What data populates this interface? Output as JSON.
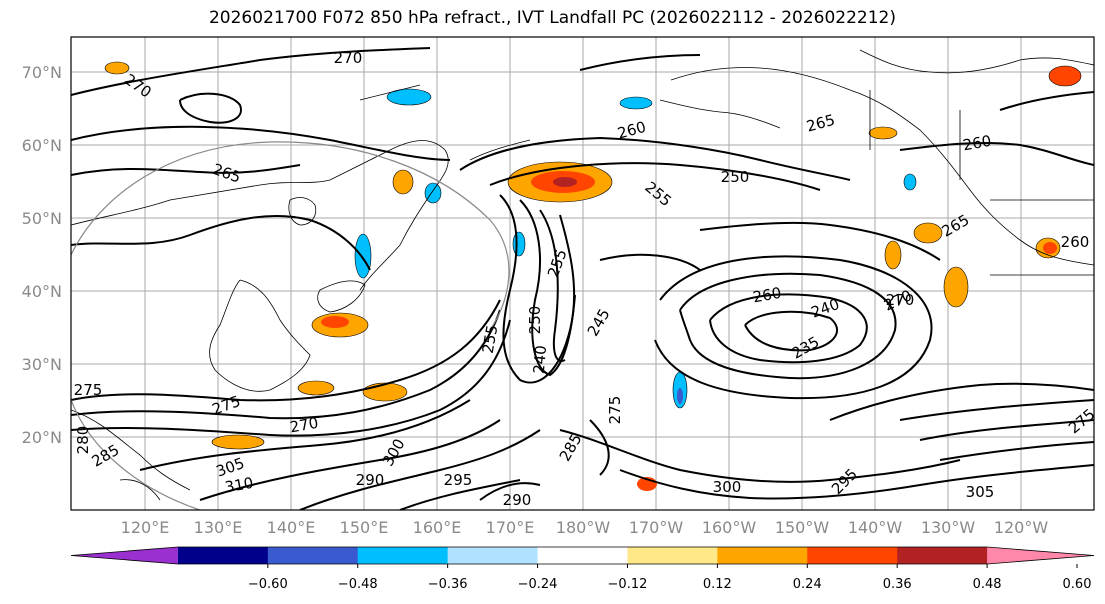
{
  "title": "2026021700 F072 850 hPa refract., IVT Landfall PC (2026022112 - 2026022212)",
  "lat_labels": [
    "70°N",
    "60°N",
    "50°N",
    "40°N",
    "30°N",
    "20°N"
  ],
  "lon_labels": [
    "120°E",
    "130°E",
    "140°E",
    "150°E",
    "160°E",
    "170°E",
    "180°W",
    "170°W",
    "160°W",
    "150°W",
    "140°W",
    "130°W",
    "120°W"
  ],
  "contour_labels": [
    "270",
    "270",
    "265",
    "260",
    "265",
    "250",
    "255",
    "260",
    "265",
    "255",
    "240",
    "235",
    "260",
    "270",
    "275",
    "270",
    "255",
    "250",
    "245",
    "240",
    "275",
    "285",
    "290",
    "295",
    "300",
    "305",
    "310",
    "275",
    "280",
    "285",
    "290",
    "295",
    "300",
    "305",
    "260",
    "270",
    "275"
  ],
  "colorbar": {
    "ticks": [
      "−0.60",
      "−0.48",
      "−0.36",
      "−0.24",
      "−0.12",
      "0.12",
      "0.24",
      "0.36",
      "0.48",
      "0.60"
    ],
    "colors": [
      "#9b30d0",
      "#00008b",
      "#3a5bd0",
      "#00bfff",
      "#b0e2ff",
      "#ffffff",
      "#ffe888",
      "#ffa500",
      "#ff4500",
      "#b22222",
      "#ff88aa"
    ]
  }
}
